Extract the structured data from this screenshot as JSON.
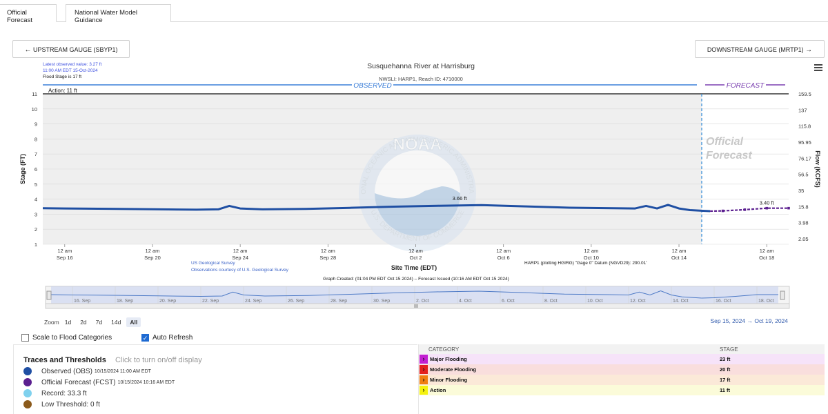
{
  "tabs": {
    "official": "Official Forecast",
    "nwm": "National Water Model Guidance"
  },
  "nav": {
    "upstream": "UPSTREAM GAUGE (SBYP1)",
    "downstream": "DOWNSTREAM GAUGE (MRTP1)",
    "left_arrow": "←",
    "right_arrow": "→"
  },
  "info": {
    "latest": "Latest observed value: 3.27 ft",
    "time": "11:00 AM EDT 15-Oct-2024",
    "flood_stage": "Flood Stage is 17 ft"
  },
  "chart_data": {
    "type": "line",
    "title": "Susquehanna River at Harrisburg",
    "subtitle": "NWSLI: HARP1, Reach ID: 4710000",
    "ylabel": "Stage (FT)",
    "y2label": "Flow (KCFS)",
    "xlabel": "Site Time (EDT)",
    "ylim": [
      1,
      11
    ],
    "yticks": [
      "1",
      "2",
      "3",
      "4",
      "5",
      "6",
      "7",
      "8",
      "9",
      "10",
      "11"
    ],
    "y2ticks": [
      "2.05",
      "3.98",
      "15.8",
      "35",
      "56.5",
      "76.17",
      "95.95",
      "115.8",
      "137",
      "159.5"
    ],
    "x_tick_top": [
      "12 am",
      "12 am",
      "12 am",
      "12 am",
      "12 am",
      "12 am",
      "12 am",
      "12 am",
      "12 am"
    ],
    "x_tick_bottom": [
      "Sep 16",
      "Sep 20",
      "Sep 24",
      "Sep 28",
      "Oct 2",
      "Oct 6",
      "Oct 10",
      "Oct 14",
      "Oct 18"
    ],
    "observed_label": "OBSERVED",
    "forecast_label": "FORECAST",
    "official_forecast_label": [
      "Official",
      "Forecast"
    ],
    "action_label": "Action: 11 ft",
    "action_value": 11,
    "forecast_start": "2024-10-15 10:16",
    "peak_obs_label": "3.66 ft",
    "peak_fcst_label": "3.40 ft",
    "series": [
      {
        "name": "Observed (OBS)",
        "color": "#1f4fa3",
        "x": [
          "2024-09-15",
          "2024-09-16",
          "2024-09-18",
          "2024-09-20",
          "2024-09-22",
          "2024-09-23",
          "2024-09-23T12",
          "2024-09-24",
          "2024-09-25",
          "2024-09-27",
          "2024-09-29",
          "2024-10-01",
          "2024-10-03",
          "2024-10-05",
          "2024-10-07",
          "2024-10-09",
          "2024-10-11",
          "2024-10-12",
          "2024-10-12T12",
          "2024-10-13",
          "2024-10-13T12",
          "2024-10-14",
          "2024-10-14T12",
          "2024-10-15T10"
        ],
        "values": [
          3.4,
          3.38,
          3.36,
          3.33,
          3.3,
          3.32,
          3.55,
          3.38,
          3.32,
          3.35,
          3.42,
          3.5,
          3.56,
          3.6,
          3.52,
          3.43,
          3.4,
          3.38,
          3.55,
          3.38,
          3.62,
          3.38,
          3.27,
          3.2
        ]
      },
      {
        "name": "Official Forecast (FCST)",
        "color": "#5b1f8f",
        "x": [
          "2024-10-15T10",
          "2024-10-16",
          "2024-10-17",
          "2024-10-18",
          "2024-10-19"
        ],
        "values": [
          3.2,
          3.22,
          3.3,
          3.4,
          3.4
        ]
      }
    ],
    "source1": "US Geological Survey",
    "source2": "Observations courtesy of U.S. Geological Survey",
    "datum": "HARP1 (plotting HGIRG) \"Gage 0\" Datum (NGVD29): 290.01'",
    "created": "Graph Created: (01:04 PM EDT Oct 15 2024) – Forecast Issued (10:16 AM EDT Oct 15 2024)",
    "navigator_labels": [
      "16. Sep",
      "18. Sep",
      "20. Sep",
      "22. Sep",
      "24. Sep",
      "26. Sep",
      "28. Sep",
      "30. Sep",
      "2. Oct",
      "4. Oct",
      "6. Oct",
      "8. Oct",
      "10. Oct",
      "12. Oct",
      "14. Oct",
      "16. Oct",
      "18. Oct"
    ]
  },
  "watermark": {
    "logo": "NOAA",
    "ring": "NATIONAL OCEANIC AND ATMOSPHERIC ADMINISTRATION",
    "bottom": "U.S. DEPARTMENT OF COMMERCE"
  },
  "zoom": {
    "label": "Zoom",
    "buttons": [
      "1d",
      "2d",
      "7d",
      "14d",
      "All"
    ],
    "selected": "All",
    "from": "Sep 15, 2024",
    "arrow": "→",
    "to": "Oct 19, 2024"
  },
  "options": {
    "scale": "Scale to Flood Categories",
    "refresh": "Auto Refresh",
    "check_mark": "✓"
  },
  "traces": {
    "title": "Traces and Thresholds",
    "hint": "Click to turn on/off display",
    "items": [
      {
        "label": "Observed (OBS)",
        "extra": "10/15/2024 11:00 AM EDT",
        "color": "#1f4fa3"
      },
      {
        "label": "Official Forecast (FCST)",
        "extra": "10/15/2024 10:16 AM EDT",
        "color": "#5b1f8f"
      },
      {
        "label": "Record: 33.3 ft",
        "extra": "",
        "color": "#7fd1ee"
      },
      {
        "label": "Low Threshold: 0 ft",
        "extra": "",
        "color": "#8b5a1b"
      }
    ]
  },
  "categories": {
    "col1": "CATEGORY",
    "col2": "STAGE",
    "rows": [
      {
        "name": "Major Flooding",
        "stage": "23 ft",
        "color": "#c21fd1",
        "bg": "#f6e3f9"
      },
      {
        "name": "Moderate Flooding",
        "stage": "20 ft",
        "color": "#e3201f",
        "bg": "#f9dedd"
      },
      {
        "name": "Minor Flooding",
        "stage": "17 ft",
        "color": "#f07e12",
        "bg": "#fbe9d8"
      },
      {
        "name": "Action",
        "stage": "11 ft",
        "color": "#f5f20f",
        "bg": "#fbfbd9"
      }
    ],
    "chevron": "›"
  }
}
